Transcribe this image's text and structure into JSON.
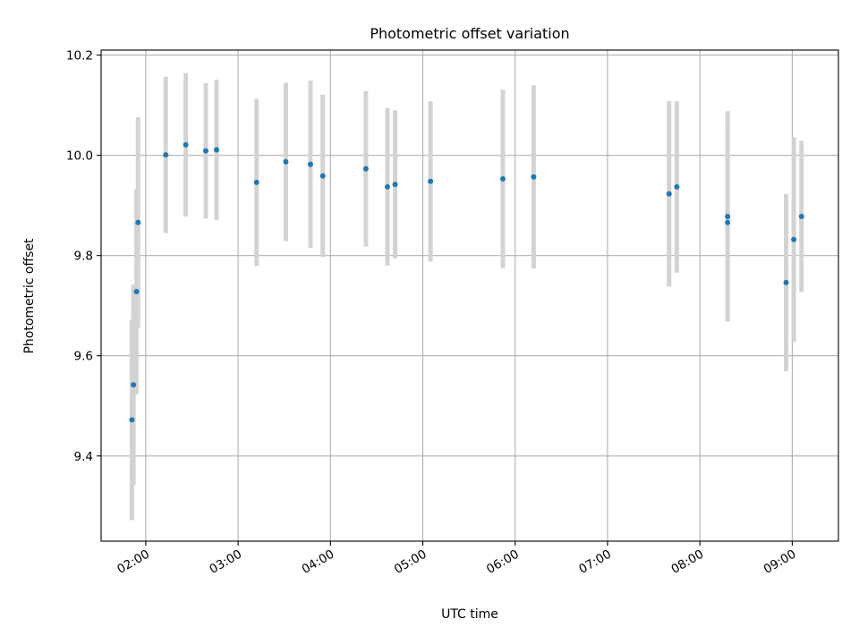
{
  "chart_data": {
    "type": "scatter",
    "title": "Photometric offset variation",
    "xlabel": "UTC time",
    "ylabel": "Photometric offset",
    "x_unit": "time of day (UTC)",
    "x_ticks": [
      "02:00",
      "03:00",
      "04:00",
      "05:00",
      "06:00",
      "07:00",
      "08:00",
      "09:00"
    ],
    "y_ticks": [
      "9.4",
      "9.6",
      "9.8",
      "10.0",
      "10.2"
    ],
    "xlim": [
      "01:31",
      "09:30"
    ],
    "ylim": [
      9.23,
      10.21
    ],
    "grid": true,
    "colors": {
      "marker": "#1f77b4",
      "errorbar": "#d3d3d3"
    },
    "points": [
      {
        "x": "01:51",
        "y": 9.472,
        "err": 0.2
      },
      {
        "x": "01:52",
        "y": 9.542,
        "err": 0.2
      },
      {
        "x": "01:54",
        "y": 9.728,
        "err": 0.205
      },
      {
        "x": "01:55",
        "y": 9.866,
        "err": 0.21
      },
      {
        "x": "02:13",
        "y": 10.001,
        "err": 0.156
      },
      {
        "x": "02:26",
        "y": 10.021,
        "err": 0.143
      },
      {
        "x": "02:39",
        "y": 10.009,
        "err": 0.135
      },
      {
        "x": "02:46",
        "y": 10.011,
        "err": 0.14
      },
      {
        "x": "03:12",
        "y": 9.946,
        "err": 0.167
      },
      {
        "x": "03:31",
        "y": 9.987,
        "err": 0.158
      },
      {
        "x": "03:47",
        "y": 9.982,
        "err": 0.167
      },
      {
        "x": "03:55",
        "y": 9.959,
        "err": 0.162
      },
      {
        "x": "04:23",
        "y": 9.973,
        "err": 0.155
      },
      {
        "x": "04:37",
        "y": 9.937,
        "err": 0.157
      },
      {
        "x": "04:42",
        "y": 9.942,
        "err": 0.148
      },
      {
        "x": "05:05",
        "y": 9.948,
        "err": 0.16
      },
      {
        "x": "05:52",
        "y": 9.953,
        "err": 0.178
      },
      {
        "x": "06:12",
        "y": 9.957,
        "err": 0.183
      },
      {
        "x": "07:40",
        "y": 9.923,
        "err": 0.185
      },
      {
        "x": "07:45",
        "y": 9.937,
        "err": 0.171
      },
      {
        "x": "08:18",
        "y": 9.866,
        "err": 0.195
      },
      {
        "x": "08:18",
        "y": 9.878,
        "err": 0.21
      },
      {
        "x": "08:56",
        "y": 9.746,
        "err": 0.177
      },
      {
        "x": "09:01",
        "y": 9.832,
        "err": 0.204
      },
      {
        "x": "09:06",
        "y": 9.878,
        "err": 0.151
      }
    ]
  }
}
